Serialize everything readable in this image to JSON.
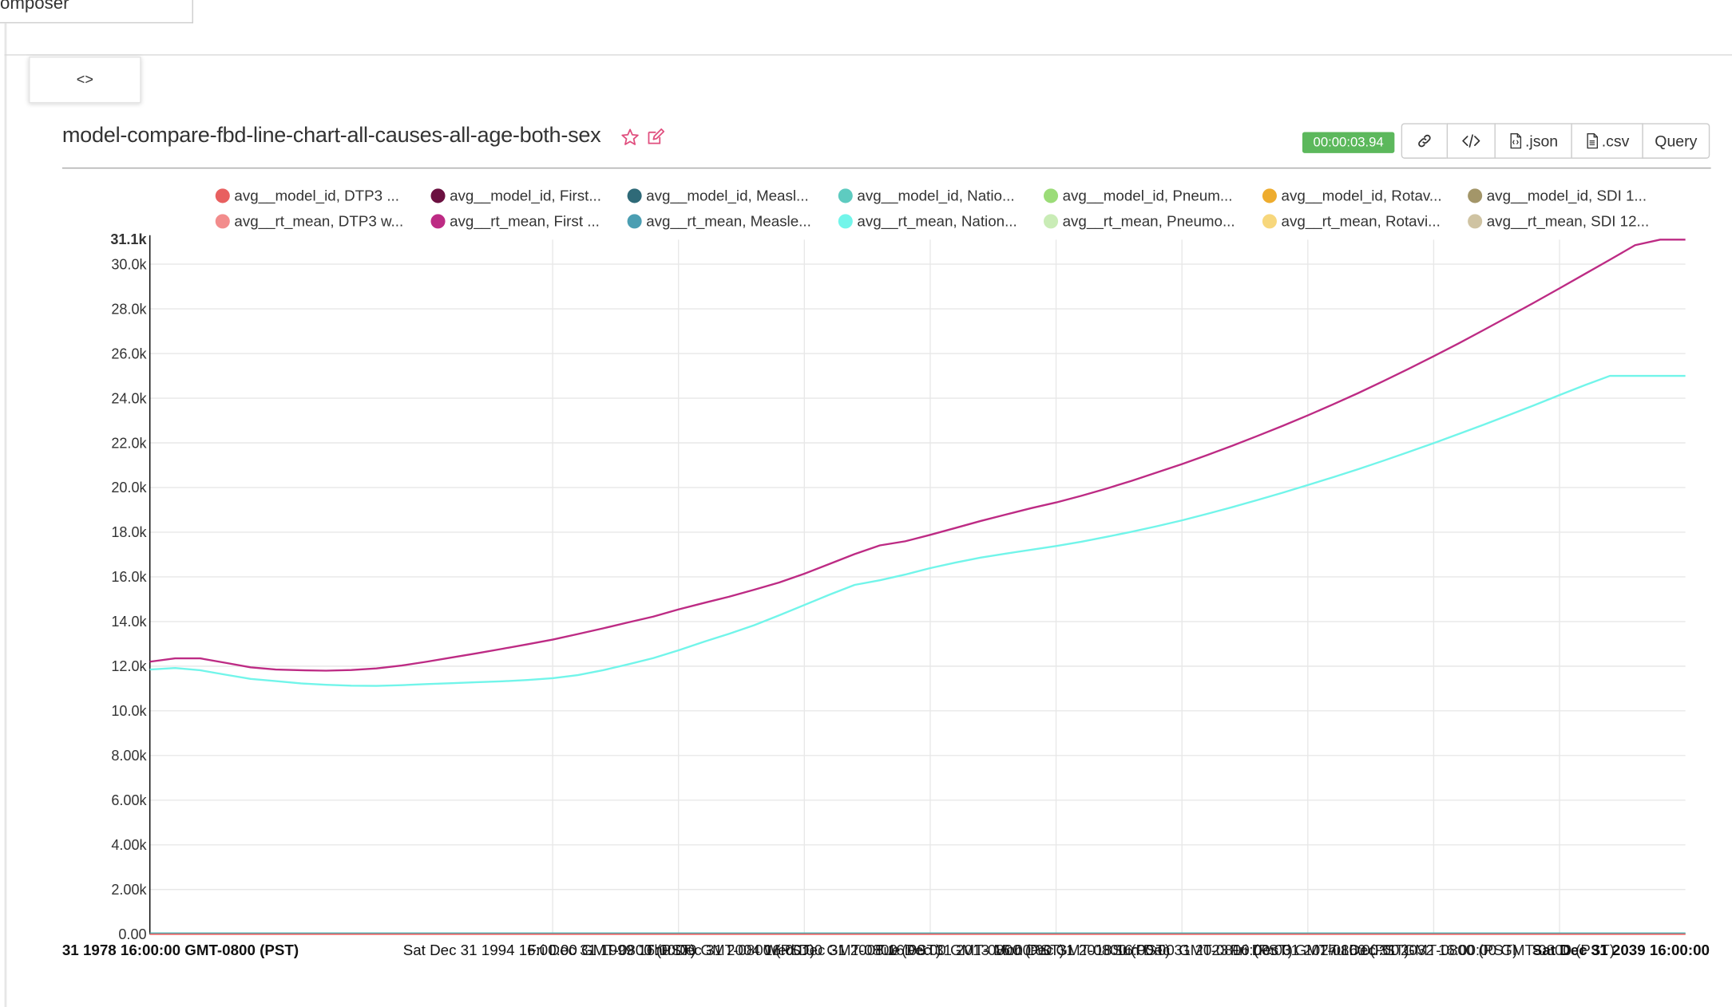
{
  "header": {
    "composer_tab": "omposer",
    "toggle_label": "<>"
  },
  "slice": {
    "title": "model-compare-fbd-line-chart-all-causes-all-age-both-sex",
    "timer": "00:00:03.94",
    "buttons": {
      "link_icon": "link-icon",
      "embed_icon": "code-icon",
      "json": ".json",
      "csv": ".csv",
      "query": "Query"
    }
  },
  "colors": {
    "success": "#5cb85c",
    "accent": "#e04e7e"
  },
  "legend": [
    {
      "label": "avg__model_id, DTP3 ...",
      "color": "#e86060"
    },
    {
      "label": "avg__rt_mean, DTP3 w...",
      "color": "#f28c8c"
    },
    {
      "label": "avg__model_id, First...",
      "color": "#6b1040"
    },
    {
      "label": "avg__rt_mean, First ...",
      "color": "#bd2b84"
    },
    {
      "label": "avg__model_id, Measl...",
      "color": "#2f6a78"
    },
    {
      "label": "avg__rt_mean, Measle...",
      "color": "#4b9eb2"
    },
    {
      "label": "avg__model_id, Natio...",
      "color": "#5ecbc0"
    },
    {
      "label": "avg__rt_mean, Nation...",
      "color": "#72f5ea"
    },
    {
      "label": "avg__model_id, Pneum...",
      "color": "#9bdc78"
    },
    {
      "label": "avg__rt_mean, Pneumo...",
      "color": "#c9ecb6"
    },
    {
      "label": "avg__model_id, Rotav...",
      "color": "#eeac2e"
    },
    {
      "label": "avg__rt_mean, Rotavi...",
      "color": "#f7d77c"
    },
    {
      "label": "avg__model_id, SDI 1...",
      "color": "#a39669"
    },
    {
      "label": "avg__rt_mean, SDI 12...",
      "color": "#cfc3a2"
    }
  ],
  "chart_data": {
    "type": "line",
    "title": "",
    "xlabel": "",
    "ylabel": "",
    "ylim": [
      0,
      31100
    ],
    "y_ticks": [
      "0.00",
      "2.00k",
      "4.00k",
      "6.00k",
      "8.00k",
      "10.0k",
      "12.0k",
      "14.0k",
      "16.0k",
      "18.0k",
      "20.0k",
      "22.0k",
      "24.0k",
      "26.0k",
      "28.0k",
      "30.0k"
    ],
    "y_tick_values": [
      0,
      2000,
      4000,
      6000,
      8000,
      10000,
      12000,
      14000,
      16000,
      18000,
      20000,
      22000,
      24000,
      26000,
      28000,
      30000
    ],
    "y_max_label": "31.1k",
    "xlim": [
      1979,
      2040
    ],
    "x_gridlines": [
      1995,
      2000,
      2005,
      2010,
      2015,
      2020,
      2025,
      2030,
      2035
    ],
    "x_tick_labels": {
      "left": "31 1978 16:00:00 GMT-0800 (PST)",
      "middle": "Sat Dec 31 1994 16:00:00 GMT-0800 (PST)",
      "right": "Sat Dec 31 2039 16:00:00",
      "overlapping": [
        "Fri Dec 31 1999 16:00:00 GMT-0800 (PST)",
        "Thu Dec 31 2004 16:00:00 GMT-0800 (PST)",
        "Wed Dec 31 2008 16:00:00 GMT-0800 (PST)",
        "Tue Dec 31 2013 16:00:00 GMT-0800 (PST)",
        "Mon Dec 31 2018 16:00:00 GMT-0800 (PST)",
        "Sun Dec 31 2023 16:00:00 GMT-0800 (PST)",
        "Fri Dec 31 2027 16:00:00 GMT-0800 (PST)",
        "Thu Dec 31 2032 16:00:00 GMT-0800 (PST)"
      ]
    },
    "x": [
      1979,
      1980,
      1981,
      1982,
      1983,
      1984,
      1985,
      1986,
      1987,
      1988,
      1989,
      1990,
      1991,
      1992,
      1993,
      1994,
      1995,
      1996,
      1997,
      1998,
      1999,
      2000,
      2001,
      2002,
      2003,
      2004,
      2005,
      2006,
      2007,
      2008,
      2009,
      2010,
      2011,
      2012,
      2013,
      2014,
      2015,
      2016,
      2017,
      2018,
      2019,
      2020,
      2021,
      2022,
      2023,
      2024,
      2025,
      2026,
      2027,
      2028,
      2029,
      2030,
      2031,
      2032,
      2033,
      2034,
      2035,
      2036,
      2037,
      2038,
      2039,
      2040
    ],
    "series": [
      {
        "name": "avg__rt_mean, First ...",
        "color": "#bd2b84",
        "values": [
          12200,
          12350,
          12350,
          12150,
          11950,
          11850,
          11820,
          11800,
          11830,
          11900,
          12030,
          12200,
          12390,
          12580,
          12780,
          12980,
          13190,
          13440,
          13690,
          13960,
          14220,
          14540,
          14830,
          15110,
          15420,
          15750,
          16140,
          16580,
          17020,
          17410,
          17590,
          17880,
          18190,
          18500,
          18790,
          19070,
          19330,
          19630,
          19950,
          20300,
          20670,
          21050,
          21450,
          21870,
          22310,
          22760,
          23230,
          23720,
          24230,
          24760,
          25310,
          25880,
          26460,
          27060,
          27670,
          28290,
          28920,
          29560,
          30200,
          30850,
          31100,
          31100
        ]
      },
      {
        "name": "avg__rt_mean, Nation...",
        "color": "#72f5ea",
        "values": [
          11850,
          11920,
          11820,
          11620,
          11430,
          11330,
          11230,
          11170,
          11130,
          11120,
          11150,
          11200,
          11240,
          11280,
          11320,
          11380,
          11460,
          11600,
          11820,
          12080,
          12360,
          12710,
          13090,
          13450,
          13830,
          14280,
          14740,
          15200,
          15640,
          15850,
          16100,
          16390,
          16640,
          16860,
          17040,
          17210,
          17380,
          17570,
          17790,
          18020,
          18270,
          18530,
          18820,
          19120,
          19440,
          19770,
          20110,
          20460,
          20820,
          21200,
          21590,
          21990,
          22400,
          22820,
          23250,
          23690,
          24140,
          24580,
          25000,
          25000,
          25000,
          25000
        ]
      },
      {
        "name": "avg__model_id, DTP3 ...",
        "color": "#e86060",
        "values": [
          12,
          12,
          12,
          12,
          12,
          12,
          12,
          12,
          12,
          12,
          12,
          12,
          12,
          12,
          12,
          12,
          12,
          12,
          12,
          12,
          12,
          12,
          12,
          12,
          12,
          12,
          12,
          12,
          12,
          12,
          12,
          12,
          12,
          12,
          12,
          12,
          12,
          12,
          12,
          12,
          12,
          12,
          12,
          12,
          12,
          12,
          12,
          12,
          12,
          12,
          12,
          12,
          12,
          12,
          12,
          12,
          12,
          12,
          12,
          12,
          12,
          12
        ]
      }
    ]
  }
}
